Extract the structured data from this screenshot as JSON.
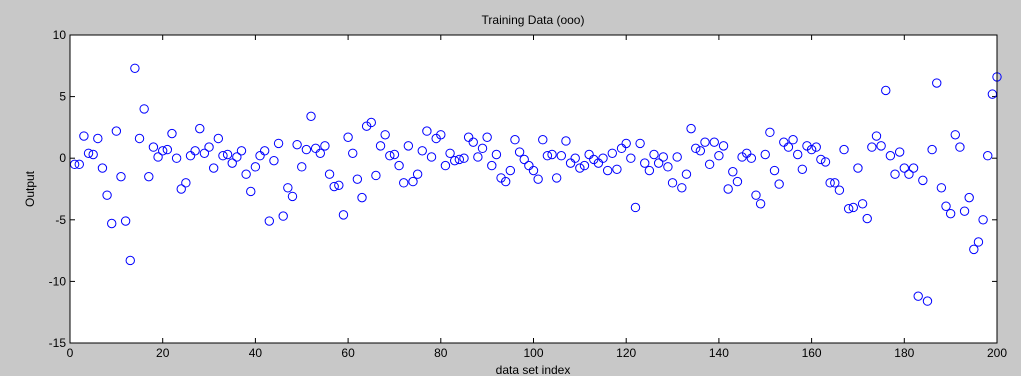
{
  "window": {
    "background": "#c8c8c8"
  },
  "chart_data": {
    "type": "scatter",
    "title": "Training Data (ooo)",
    "xlabel": "data set index",
    "ylabel": "Output",
    "xlim": [
      0,
      200
    ],
    "ylim": [
      -15,
      10
    ],
    "xticks": [
      0,
      20,
      40,
      60,
      80,
      100,
      120,
      140,
      160,
      180,
      200
    ],
    "yticks": [
      10,
      5,
      0,
      -5,
      -10,
      -15
    ],
    "grid": false,
    "legend": "none",
    "marker": "circle",
    "marker_color": "#0000ff",
    "x": [
      1,
      2,
      3,
      4,
      5,
      6,
      7,
      8,
      9,
      10,
      11,
      12,
      13,
      14,
      15,
      16,
      17,
      18,
      19,
      20,
      21,
      22,
      23,
      24,
      25,
      26,
      27,
      28,
      29,
      30,
      31,
      32,
      33,
      34,
      35,
      36,
      37,
      38,
      39,
      40,
      41,
      42,
      43,
      44,
      45,
      46,
      47,
      48,
      49,
      50,
      51,
      52,
      53,
      54,
      55,
      56,
      57,
      58,
      59,
      60,
      61,
      62,
      63,
      64,
      65,
      66,
      67,
      68,
      69,
      70,
      71,
      72,
      73,
      74,
      75,
      76,
      77,
      78,
      79,
      80,
      81,
      82,
      83,
      84,
      85,
      86,
      87,
      88,
      89,
      90,
      91,
      92,
      93,
      94,
      95,
      96,
      97,
      98,
      99,
      100,
      101,
      102,
      103,
      104,
      105,
      106,
      107,
      108,
      109,
      110,
      111,
      112,
      113,
      114,
      115,
      116,
      117,
      118,
      119,
      120,
      121,
      122,
      123,
      124,
      125,
      126,
      127,
      128,
      129,
      130,
      131,
      132,
      133,
      134,
      135,
      136,
      137,
      138,
      139,
      140,
      141,
      142,
      143,
      144,
      145,
      146,
      147,
      148,
      149,
      150,
      151,
      152,
      153,
      154,
      155,
      156,
      157,
      158,
      159,
      160,
      161,
      162,
      163,
      164,
      165,
      166,
      167,
      168,
      169,
      170,
      171,
      172,
      173,
      174,
      175,
      176,
      177,
      178,
      179,
      180,
      181,
      182,
      183,
      184,
      185,
      186,
      187,
      188,
      189,
      190,
      191,
      192,
      193,
      194,
      195,
      196,
      197,
      198,
      199,
      200
    ],
    "y": [
      -0.5,
      -0.5,
      1.8,
      0.4,
      0.3,
      1.6,
      -0.8,
      -3.0,
      -5.3,
      2.2,
      -1.5,
      -5.1,
      -8.3,
      7.3,
      1.6,
      4.0,
      -1.5,
      0.9,
      0.1,
      0.6,
      0.7,
      2.0,
      0.0,
      -2.5,
      -2.0,
      0.2,
      0.6,
      2.4,
      0.4,
      0.9,
      -0.8,
      1.6,
      0.2,
      0.3,
      -0.4,
      0.1,
      0.6,
      -1.3,
      -2.7,
      -0.7,
      0.2,
      0.6,
      -5.1,
      -0.2,
      1.2,
      -4.7,
      -2.4,
      -3.1,
      1.1,
      -0.7,
      0.7,
      3.4,
      0.8,
      0.4,
      1.0,
      -1.3,
      -2.3,
      -2.2,
      -4.6,
      1.7,
      0.4,
      -1.7,
      -3.2,
      2.6,
      2.9,
      -1.4,
      1.0,
      1.9,
      0.2,
      0.3,
      -0.6,
      -2.0,
      1.0,
      -1.9,
      -1.3,
      0.6,
      2.2,
      0.1,
      1.6,
      1.9,
      -0.6,
      0.4,
      -0.2,
      -0.1,
      0.0,
      1.7,
      1.3,
      0.1,
      0.8,
      1.7,
      -0.6,
      0.3,
      -1.6,
      -1.9,
      -1.0,
      1.5,
      0.5,
      -0.1,
      -0.6,
      -1.0,
      -1.7,
      1.5,
      0.2,
      0.3,
      -1.6,
      0.2,
      1.4,
      -0.4,
      0.0,
      -0.8,
      -0.6,
      0.3,
      -0.1,
      -0.4,
      0.0,
      -1.0,
      0.4,
      -0.9,
      0.8,
      1.2,
      0.0,
      -4.0,
      1.2,
      -0.4,
      -1.0,
      0.3,
      -0.4,
      0.1,
      -0.7,
      -2.0,
      0.1,
      -2.4,
      -1.3,
      2.4,
      0.8,
      0.6,
      1.3,
      -0.5,
      1.3,
      0.2,
      1.0,
      -2.5,
      -1.1,
      -1.9,
      0.1,
      0.4,
      0.0,
      -3.0,
      -3.7,
      0.3,
      2.1,
      -1.0,
      -2.1,
      1.3,
      0.9,
      1.5,
      0.3,
      -0.9,
      1.0,
      0.7,
      0.9,
      -0.1,
      -0.3,
      -2.0,
      -2.0,
      -2.6,
      0.7,
      -4.1,
      -4.0,
      -0.8,
      -3.7,
      -4.9,
      0.9,
      1.8,
      1.0,
      5.5,
      0.2,
      -1.3,
      0.5,
      -0.8,
      -1.3,
      -0.8,
      -11.2,
      -1.8,
      -11.6,
      0.7,
      6.1,
      -2.4,
      -3.9,
      -4.5,
      1.9,
      0.9,
      -4.3,
      -3.2,
      -7.4,
      -6.8,
      -5.0,
      0.2,
      5.2,
      6.6
    ]
  }
}
